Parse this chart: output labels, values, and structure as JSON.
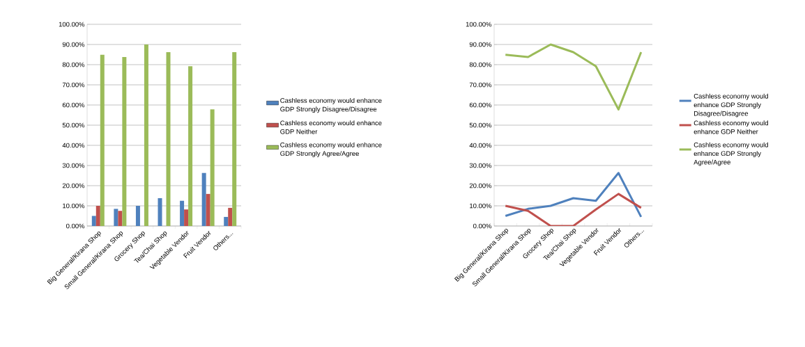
{
  "chart_data": [
    {
      "type": "bar",
      "categories": [
        "Big General/Kirana Shop",
        "Small General/Kirana Shop",
        "Grocery Shop",
        "Tea/Chai Shop",
        "Vegetable Vendor",
        "Fruit Vendor",
        "Others..."
      ],
      "series": [
        {
          "name": "Cashless economy would enhance GDP Strongly Disagree/Disagree",
          "color": "#4f81bd",
          "values": [
            5.0,
            8.5,
            10.0,
            13.8,
            12.5,
            26.3,
            4.5
          ]
        },
        {
          "name": "Cashless economy would enhance GDP Neither",
          "color": "#c0504d",
          "values": [
            10.0,
            7.5,
            0,
            0,
            8.2,
            15.9,
            9.0
          ]
        },
        {
          "name": "Cashless economy would enhance GDP Strongly Agree/Agree",
          "color": "#9bbb59",
          "values": [
            84.9,
            83.8,
            90.0,
            86.2,
            79.2,
            57.8,
            86.2
          ]
        }
      ],
      "ylim": [
        0,
        100
      ],
      "yticks": [
        {
          "value": 0,
          "label": "0.00%"
        },
        {
          "value": 10,
          "label": "10.00%"
        },
        {
          "value": 20,
          "label": "20.00%"
        },
        {
          "value": 30,
          "label": "30.00%"
        },
        {
          "value": 40,
          "label": "40.00%"
        },
        {
          "value": 50,
          "label": "50.00%"
        },
        {
          "value": 60,
          "label": "60.00%"
        },
        {
          "value": 70,
          "label": "70.00%"
        },
        {
          "value": 80,
          "label": "80.00%"
        },
        {
          "value": 90,
          "label": "90.00%"
        },
        {
          "value": 100,
          "label": "100.00%"
        }
      ],
      "grid": "y",
      "legend": "right"
    },
    {
      "type": "line",
      "categories": [
        "Big General/Kirana Shop",
        "Small General/Kirana Shop",
        "Grocery Shop",
        "Tea/Chai Shop",
        "Vegetable Vendor",
        "Fruit Vendor",
        "Others..."
      ],
      "series": [
        {
          "name": "Cashless economy would enhance GDP Strongly Disagree/Disagree",
          "color": "#4f81bd",
          "values": [
            5.0,
            8.5,
            10.0,
            13.8,
            12.5,
            26.3,
            4.5
          ]
        },
        {
          "name": "Cashless economy would enhance GDP Neither",
          "color": "#c0504d",
          "values": [
            10.0,
            7.5,
            0,
            0,
            8.2,
            15.9,
            9.0
          ]
        },
        {
          "name": "Cashless economy would enhance GDP Strongly Agree/Agree",
          "color": "#9bbb59",
          "values": [
            84.9,
            83.8,
            90.0,
            86.2,
            79.2,
            57.8,
            86.2
          ]
        }
      ],
      "ylim": [
        0,
        100
      ],
      "yticks": [
        {
          "value": 0,
          "label": "0.00%"
        },
        {
          "value": 10,
          "label": "10.00%"
        },
        {
          "value": 20,
          "label": "20.00%"
        },
        {
          "value": 30,
          "label": "30.00%"
        },
        {
          "value": 40,
          "label": "40.00%"
        },
        {
          "value": 50,
          "label": "50.00%"
        },
        {
          "value": 60,
          "label": "60.00%"
        },
        {
          "value": 70,
          "label": "70.00%"
        },
        {
          "value": 80,
          "label": "80.00%"
        },
        {
          "value": 90,
          "label": "90.00%"
        },
        {
          "value": 100,
          "label": "100.00%"
        }
      ],
      "grid": "y",
      "legend": "right"
    }
  ]
}
